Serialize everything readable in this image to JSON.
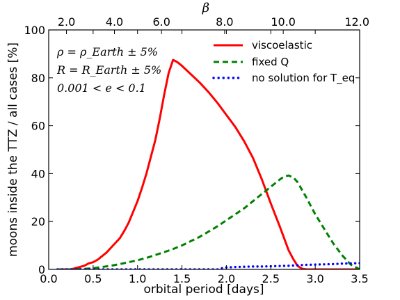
{
  "chart_data": {
    "type": "line",
    "xlabel": "orbital period [days]",
    "ylabel": "moons inside the TTZ / all cases [%]",
    "top_xlabel": "β",
    "xlim": [
      0.0,
      3.5
    ],
    "ylim": [
      0,
      100
    ],
    "x_ticks": [
      "0.0",
      "0.5",
      "1.0",
      "1.5",
      "2.0",
      "2.5",
      "3.0",
      "3.5"
    ],
    "y_ticks": [
      "0",
      "20",
      "40",
      "60",
      "80",
      "100"
    ],
    "top_ticks": [
      {
        "label": "2.0",
        "x": 0.2
      },
      {
        "label": "4.0",
        "x": 0.74
      },
      {
        "label": "6.0",
        "x": 1.27
      },
      {
        "label": "8.0",
        "x": 1.98
      },
      {
        "label": "10.0",
        "x": 2.64
      },
      {
        "label": "12.0",
        "x": 3.5
      }
    ],
    "annotations": [
      "ρ = ρ_Earth ± 5%",
      "R = R_Earth ± 5%",
      "0.001 < e < 0.1"
    ],
    "legend_position": "upper-right",
    "grid": false,
    "series": [
      {
        "name": "viscoelastic",
        "color": "#ff0000",
        "style": "solid",
        "x": [
          0.1,
          0.25,
          0.3,
          0.35,
          0.4,
          0.45,
          0.5,
          0.55,
          0.6,
          0.65,
          0.7,
          0.75,
          0.8,
          0.85,
          0.9,
          0.95,
          1.0,
          1.05,
          1.1,
          1.15,
          1.2,
          1.25,
          1.3,
          1.35,
          1.4,
          1.45,
          1.5,
          1.6,
          1.7,
          1.8,
          1.9,
          2.0,
          2.1,
          2.2,
          2.3,
          2.4,
          2.5,
          2.6,
          2.7,
          2.75,
          2.8,
          2.85,
          2.9,
          3.0,
          3.5
        ],
        "y": [
          0,
          0,
          0.5,
          1,
          1.5,
          2.5,
          3,
          4,
          5.5,
          7,
          9,
          11,
          13,
          16,
          19.5,
          24,
          28.5,
          34,
          40,
          47,
          54,
          63,
          73,
          82,
          87.5,
          86.5,
          85,
          81.5,
          78,
          74,
          69.5,
          64.5,
          59.5,
          53.5,
          46.5,
          37.5,
          27.5,
          18,
          8,
          4.5,
          1.5,
          0.3,
          0,
          0,
          0
        ]
      },
      {
        "name": "fixed Q",
        "color": "#008000",
        "style": "dashed",
        "x": [
          0.1,
          0.3,
          0.4,
          0.5,
          0.6,
          0.7,
          0.8,
          0.9,
          1.0,
          1.1,
          1.2,
          1.3,
          1.4,
          1.5,
          1.6,
          1.7,
          1.8,
          1.9,
          2.0,
          2.1,
          2.2,
          2.3,
          2.4,
          2.5,
          2.6,
          2.65,
          2.7,
          2.75,
          2.8,
          2.9,
          3.0,
          3.1,
          3.2,
          3.3,
          3.4,
          3.5
        ],
        "y": [
          0,
          0,
          0.2,
          0.5,
          1,
          1.5,
          2.2,
          3,
          3.8,
          4.8,
          6,
          7.2,
          8.5,
          10,
          11.8,
          13.6,
          15.8,
          18,
          20.5,
          23,
          25.5,
          28.5,
          31.5,
          34.5,
          37.5,
          38.8,
          39.2,
          38.5,
          36.5,
          30,
          23,
          17,
          11,
          6,
          2,
          0
        ]
      },
      {
        "name": "no solution for T_eq",
        "color": "#0000ff",
        "style": "dotted",
        "x": [
          0.1,
          1.9,
          1.95,
          2.0,
          2.1,
          2.2,
          2.3,
          2.4,
          2.5,
          2.6,
          2.7,
          2.8,
          2.9,
          3.0,
          3.1,
          3.2,
          3.3,
          3.4,
          3.5
        ],
        "y": [
          0,
          0,
          0.5,
          0.8,
          1.0,
          1.1,
          1.2,
          1.2,
          1.3,
          1.4,
          1.5,
          1.7,
          1.9,
          2.0,
          2.1,
          2.2,
          2.4,
          2.5,
          2.6
        ]
      }
    ]
  }
}
